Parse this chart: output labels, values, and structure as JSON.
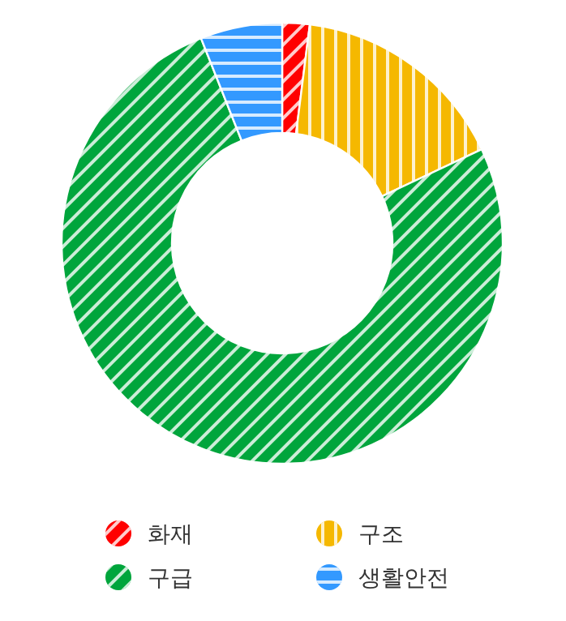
{
  "chart_data": {
    "type": "donut",
    "categories": [
      "화재",
      "구조",
      "구급",
      "생활안전"
    ],
    "values": [
      2,
      16,
      76,
      6
    ],
    "colors": [
      "#ff0000",
      "#f5b800",
      "#00a53c",
      "#3399ff"
    ],
    "legend": "bottom"
  }
}
